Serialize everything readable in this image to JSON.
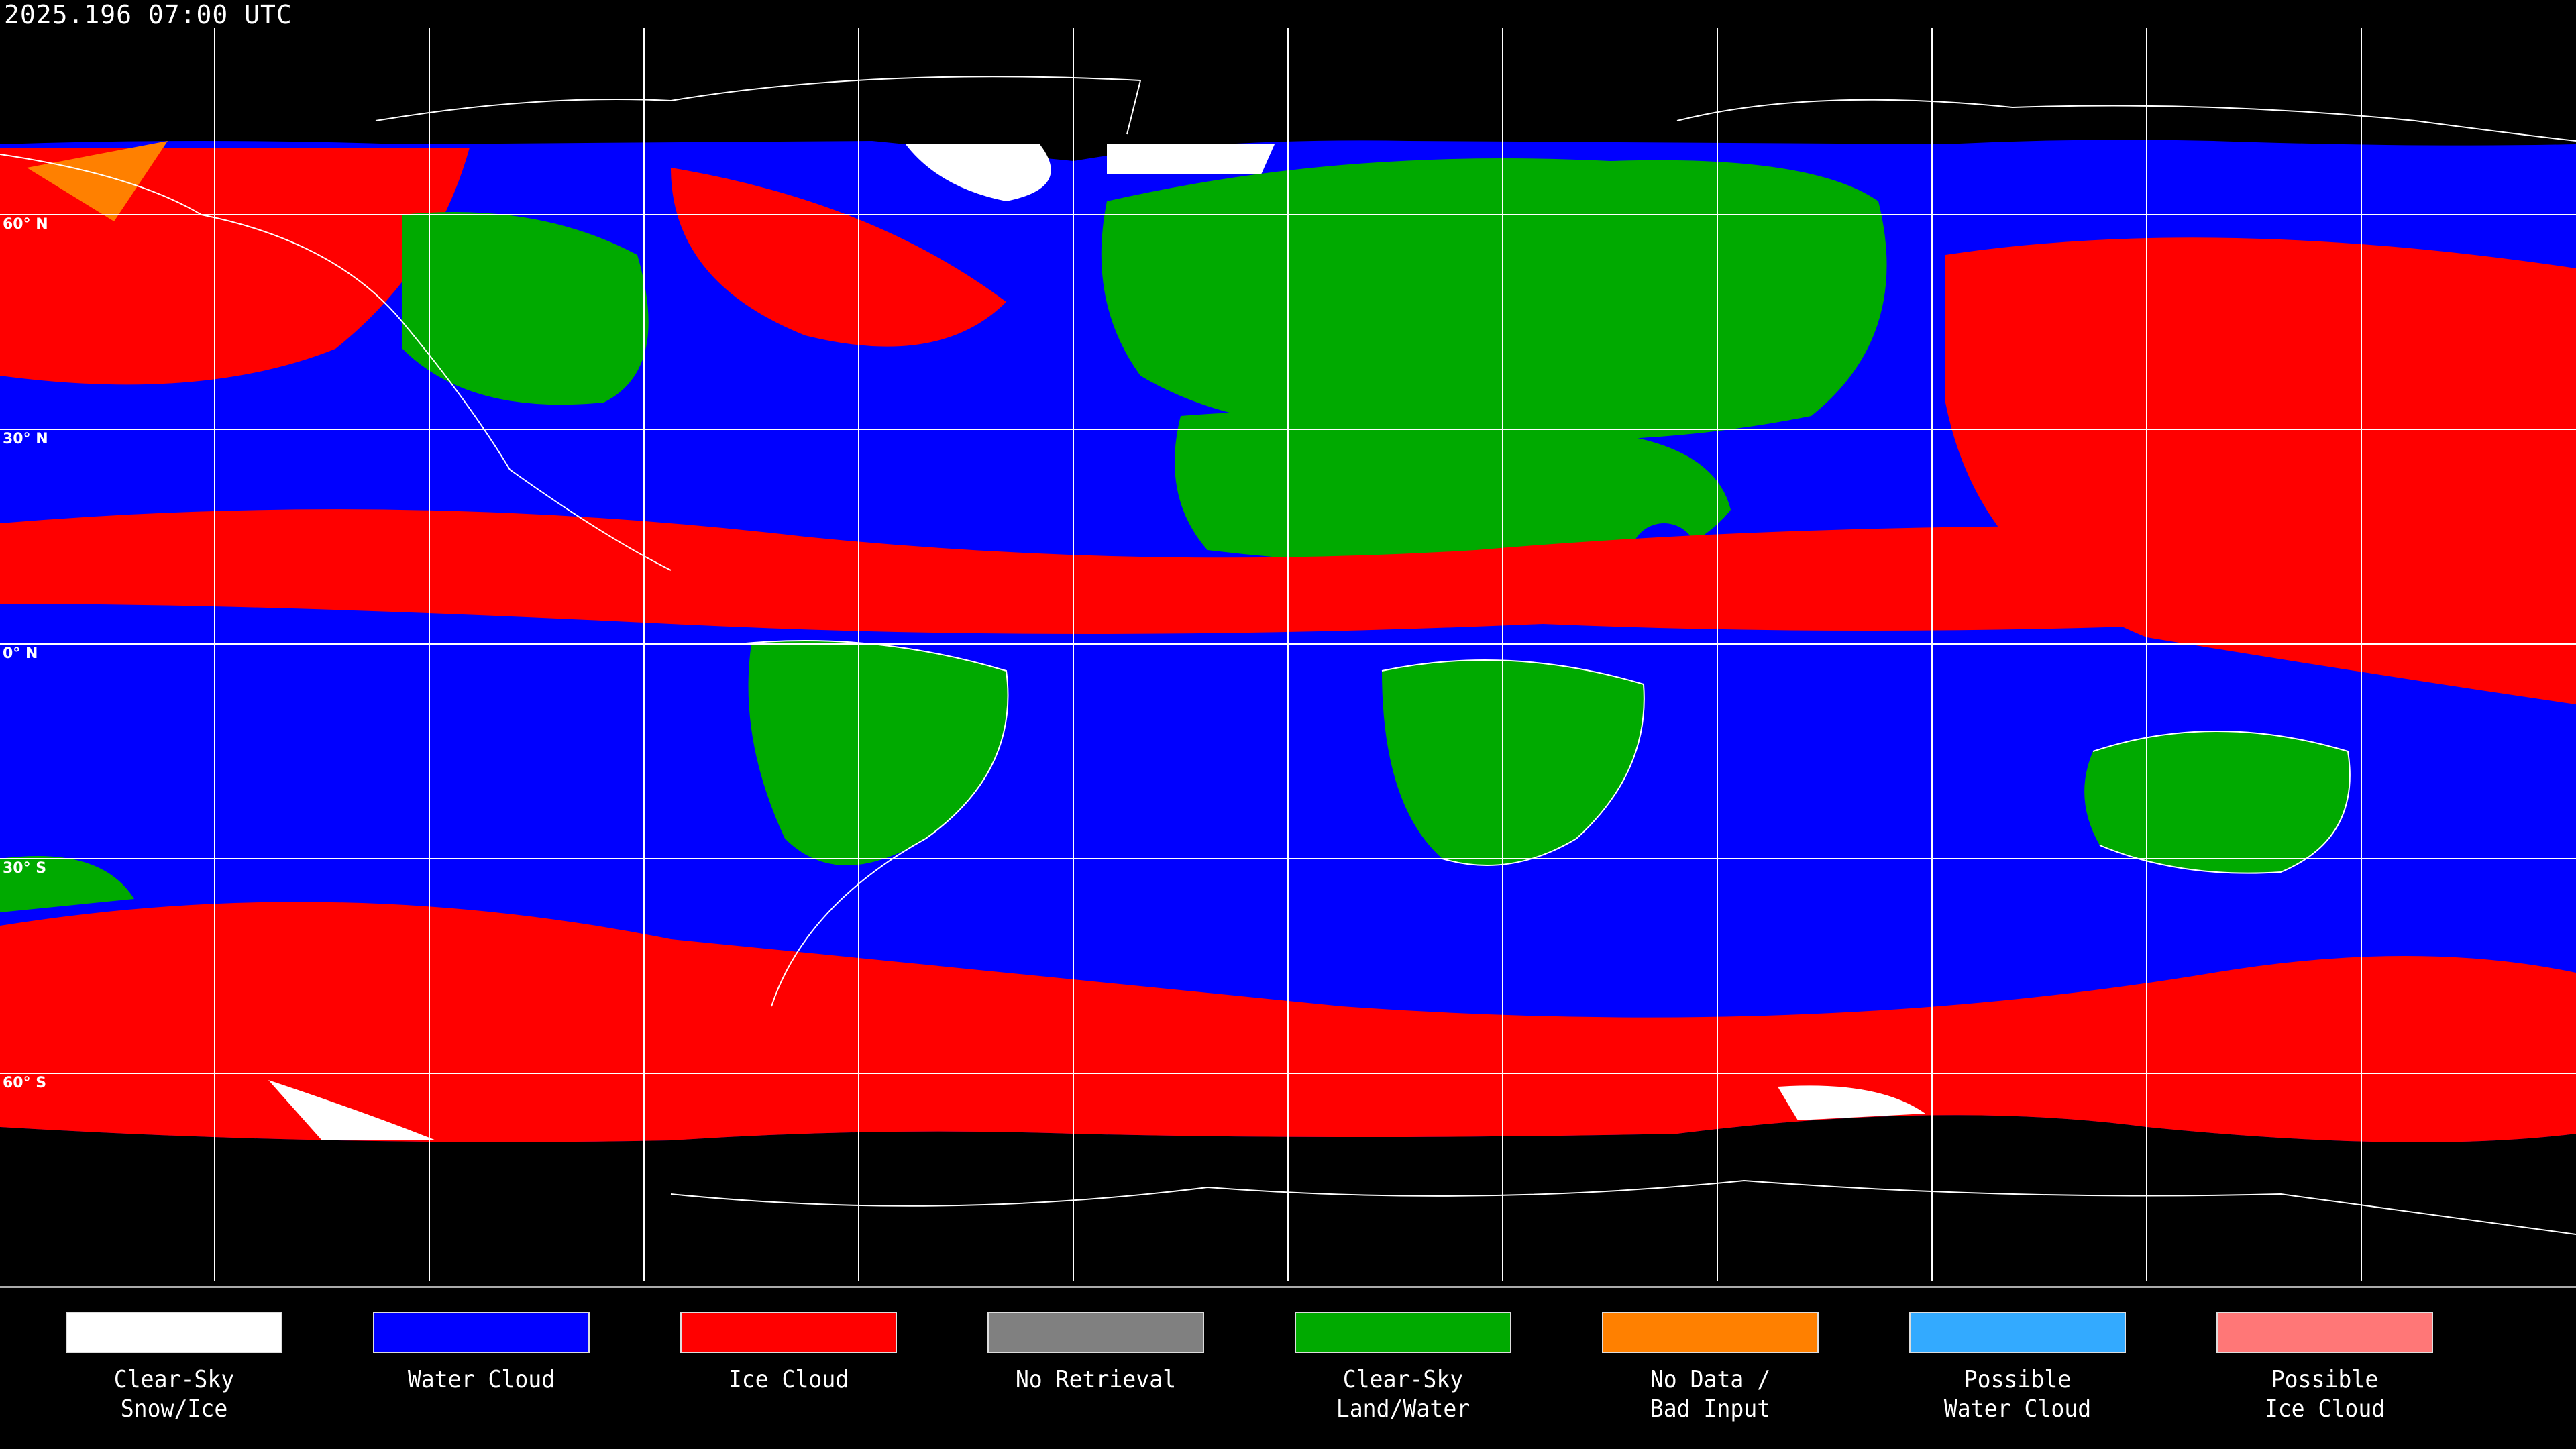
{
  "title": "2025.196 07:00 UTC",
  "latitude_labels": [
    "60° N",
    "30° N",
    "0° N",
    "30° S",
    "60° S"
  ],
  "legend": [
    {
      "line1": "Clear-Sky",
      "line2": "Snow/Ice",
      "color": "#ffffff"
    },
    {
      "line1": "Water Cloud",
      "line2": "",
      "color": "#0000ff"
    },
    {
      "line1": "Ice Cloud",
      "line2": "",
      "color": "#ff0000"
    },
    {
      "line1": "No Retrieval",
      "line2": "",
      "color": "#808080"
    },
    {
      "line1": "Clear-Sky",
      "line2": "Land/Water",
      "color": "#00aa00"
    },
    {
      "line1": "No Data /",
      "line2": "Bad Input",
      "color": "#ff8000"
    },
    {
      "line1": "Possible",
      "line2": "Water Cloud",
      "color": "#33aaff"
    },
    {
      "line1": "Possible",
      "line2": "Ice Cloud",
      "color": "#ff7777"
    }
  ]
}
